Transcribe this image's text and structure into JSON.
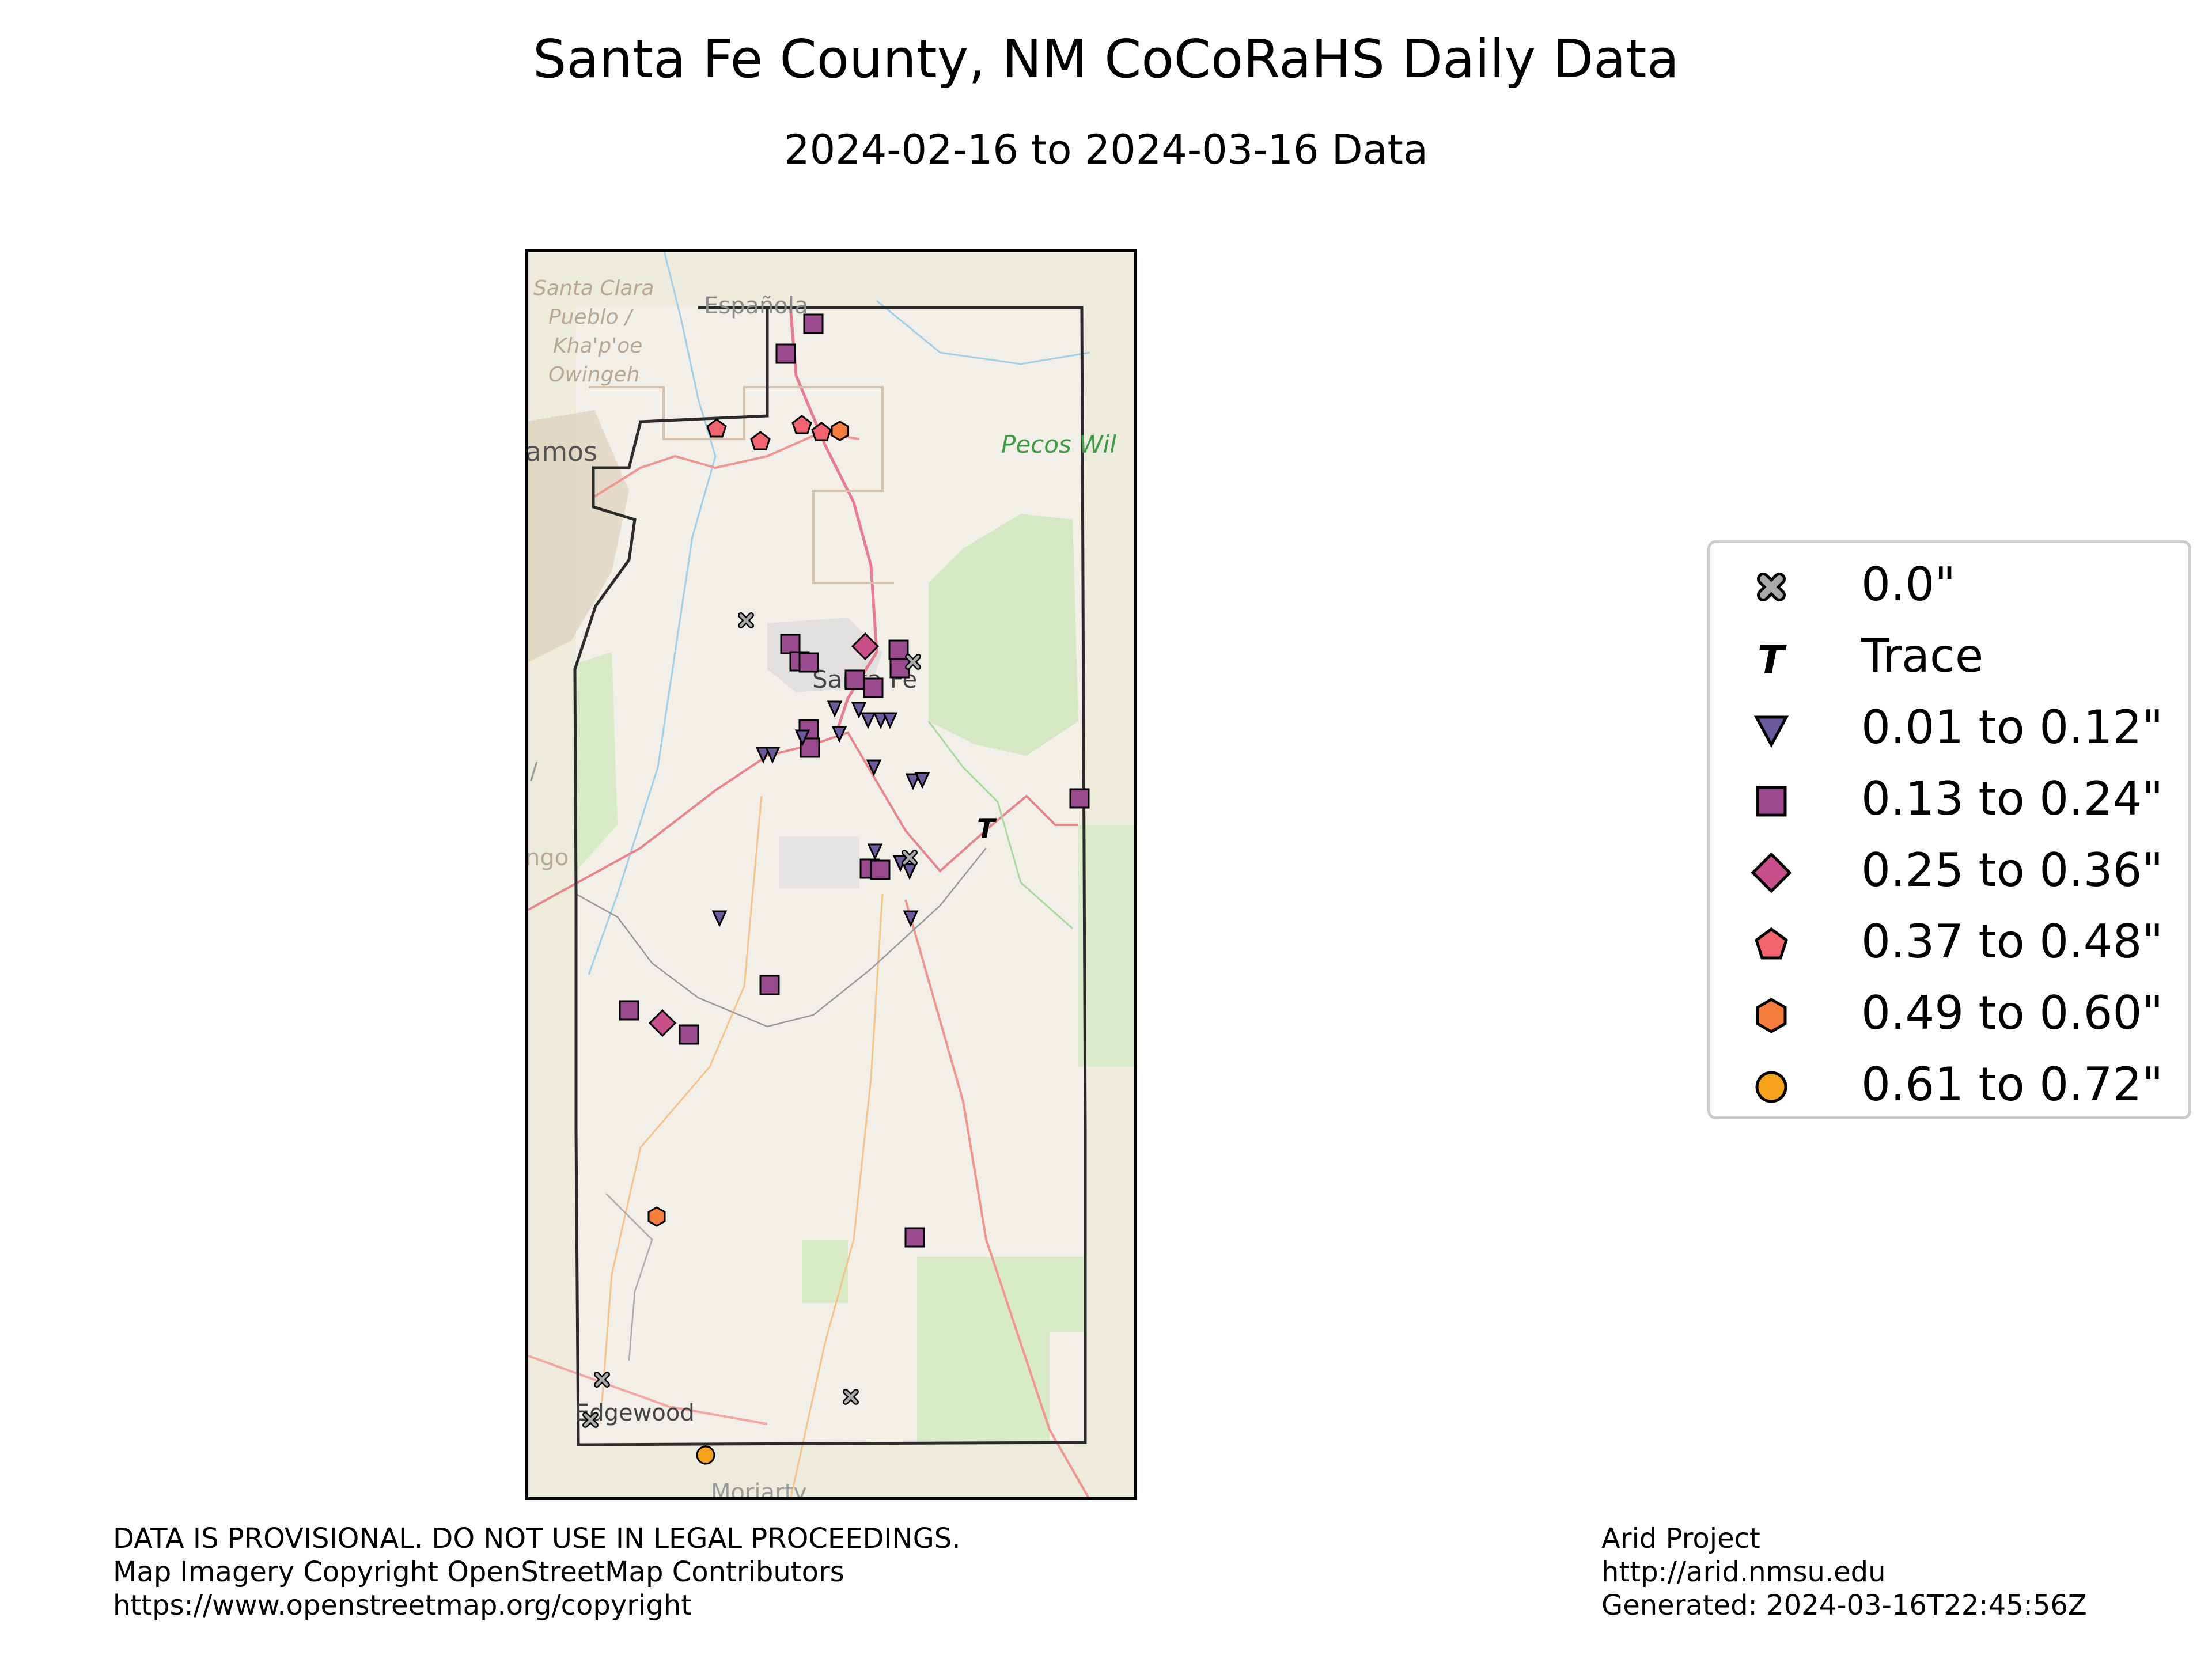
{
  "title": "Santa Fe County, NM CoCoRaHS Daily Data",
  "subtitle": "2024-02-16 to 2024-03-16 Data",
  "map_labels": {
    "santa_clara": [
      "Santa Clara",
      "Pueblo /",
      "Kha'p'oe",
      "Owingeh"
    ],
    "espanola": "Española",
    "los_alamos": "amos",
    "pecos": "Pecos Wil",
    "santa_fe": "Santa Fe",
    "edgewood": "Edgewood",
    "moriarty": "Moriarty",
    "left_edge_1": "/",
    "left_edge_2": "ngo"
  },
  "colors": {
    "zero": "#aaaaaa",
    "trace": "#000000",
    "c1": "#6b5b9e",
    "c2": "#9a4a8e",
    "c3": "#c94f8a",
    "c4": "#f2646e",
    "c5": "#f57d3d",
    "c6": "#f6a21c",
    "map_bg": "#f2efe9",
    "outside_bg": "#ebebd9",
    "forest": "#d7ebc7"
  },
  "legend": [
    {
      "label": "0.0\"",
      "marker": "x-icon",
      "color": "#aaaaaa"
    },
    {
      "label": "Trace",
      "marker": "t-icon",
      "color": "#000000"
    },
    {
      "label": "0.01 to 0.12\"",
      "marker": "triangle-down-icon",
      "color": "#6b5b9e"
    },
    {
      "label": "0.13 to 0.24\"",
      "marker": "square-icon",
      "color": "#9a4a8e"
    },
    {
      "label": "0.25 to 0.36\"",
      "marker": "diamond-icon",
      "color": "#c94f8a"
    },
    {
      "label": "0.37 to 0.48\"",
      "marker": "pentagon-icon",
      "color": "#f2646e"
    },
    {
      "label": "0.49 to 0.60\"",
      "marker": "hexagon-icon",
      "color": "#f57d3d"
    },
    {
      "label": "0.61 to 0.72\"",
      "marker": "circle-icon",
      "color": "#f6a21c"
    }
  ],
  "footer_left": [
    "DATA IS PROVISIONAL. DO NOT USE IN LEGAL PROCEEDINGS.",
    "Map Imagery Copyright OpenStreetMap Contributors",
    "https://www.openstreetmap.org/copyright"
  ],
  "footer_right": [
    "Arid Project",
    "http://arid.nmsu.edu",
    "Generated: 2024-03-16T22:45:56Z"
  ]
}
